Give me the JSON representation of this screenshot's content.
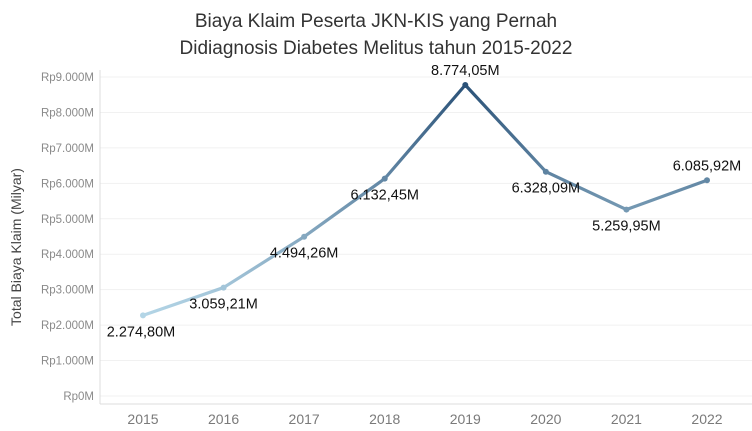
{
  "chart_data": {
    "type": "line",
    "title_lines": [
      "Biaya Klaim Peserta JKN-KIS yang Pernah",
      "Didiagnosis Diabetes Melitus tahun 2015-2022"
    ],
    "xlabel": "",
    "ylabel": "Total Biaya Klaim (Milyar)",
    "ylim": [
      0,
      9000
    ],
    "yticks": [
      {
        "value": 0,
        "label": "Rp0M"
      },
      {
        "value": 1000,
        "label": "Rp1.000M"
      },
      {
        "value": 2000,
        "label": "Rp2.000M"
      },
      {
        "value": 3000,
        "label": "Rp3.000M"
      },
      {
        "value": 4000,
        "label": "Rp4.000M"
      },
      {
        "value": 5000,
        "label": "Rp5.000M"
      },
      {
        "value": 6000,
        "label": "Rp6.000M"
      },
      {
        "value": 7000,
        "label": "Rp7.000M"
      },
      {
        "value": 8000,
        "label": "Rp8.000M"
      },
      {
        "value": 9000,
        "label": "Rp9.000M"
      }
    ],
    "categories": [
      "2015",
      "2016",
      "2017",
      "2018",
      "2019",
      "2020",
      "2021",
      "2022"
    ],
    "values": [
      2274.8,
      3059.21,
      4494.26,
      6132.45,
      8774.05,
      6328.09,
      5259.95,
      6085.92
    ],
    "data_labels": [
      "2.274,80M",
      "3.059,21M",
      "4.494,26M",
      "6.132,45M",
      "8.774,05M",
      "6.328,09M",
      "5.259,95M",
      "6.085,92M"
    ],
    "label_position": [
      "below",
      "below",
      "below",
      "below",
      "above",
      "below",
      "below",
      "above"
    ],
    "color_range": [
      "#b3d5e6",
      "#2b5278"
    ],
    "grid": "horizontal"
  }
}
